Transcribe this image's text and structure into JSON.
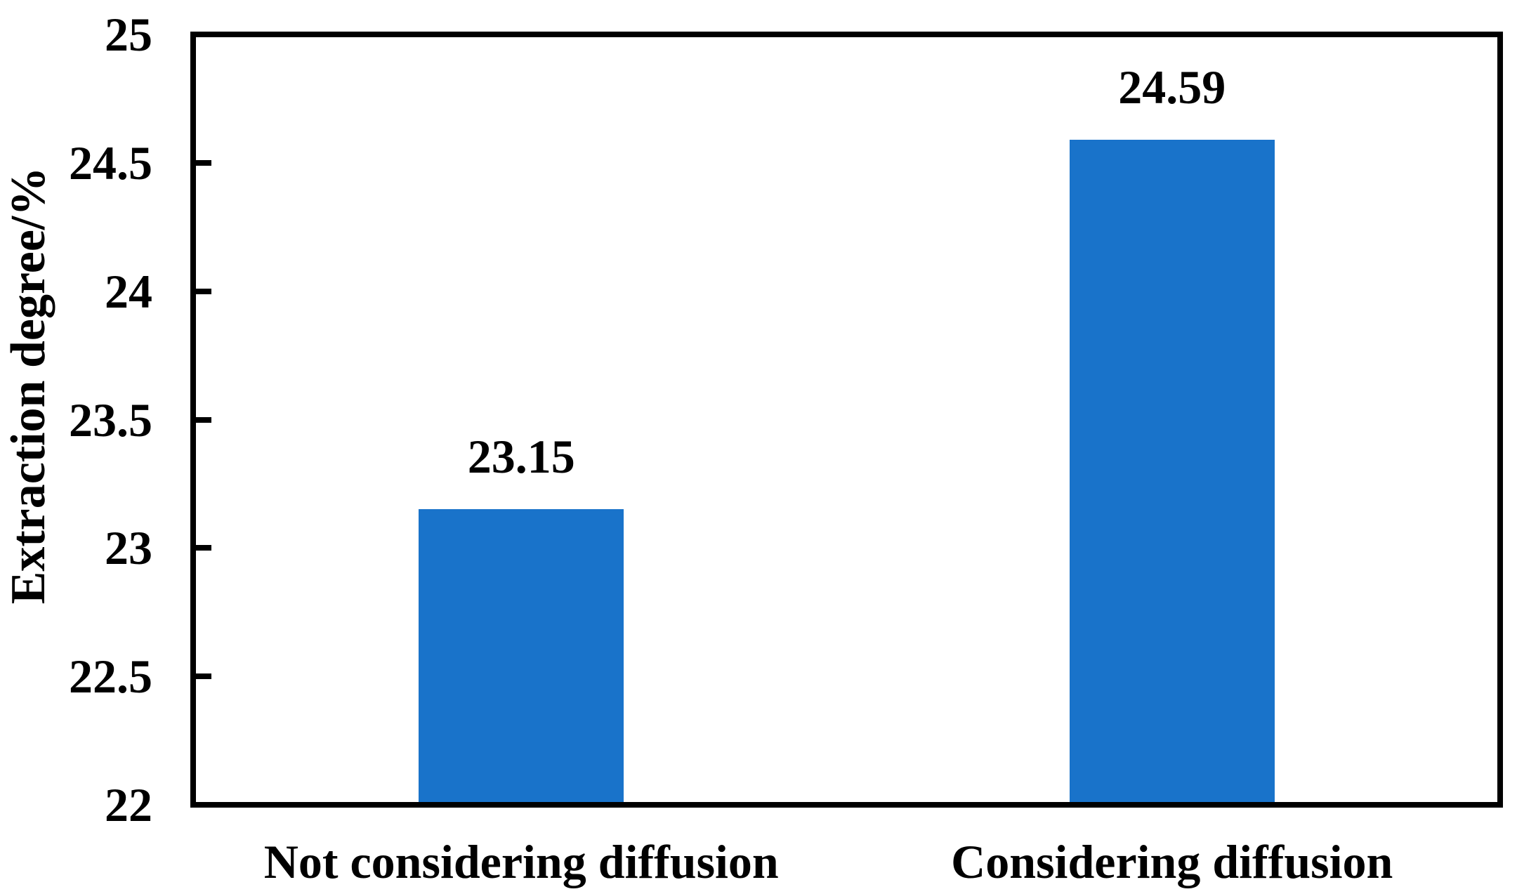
{
  "chart_data": {
    "type": "bar",
    "title": "",
    "categories": [
      "Not considering diffusion",
      "Considering diffusion"
    ],
    "values": [
      23.15,
      24.59
    ],
    "value_labels": [
      "23.15",
      "24.59"
    ],
    "xlabel": "",
    "ylabel": "Extraction degree/%",
    "ylim": [
      22,
      25
    ],
    "yticks": [
      22,
      22.5,
      23,
      23.5,
      24,
      24.5,
      25
    ],
    "ytick_labels": [
      "22",
      "22.5",
      "23",
      "23.5",
      "24",
      "24.5",
      "25"
    ],
    "grid": false,
    "legend_position": "none"
  },
  "colors": {
    "bar": "#1973CA",
    "axis": "#000000",
    "text": "#000000",
    "background": "#FFFFFF"
  }
}
